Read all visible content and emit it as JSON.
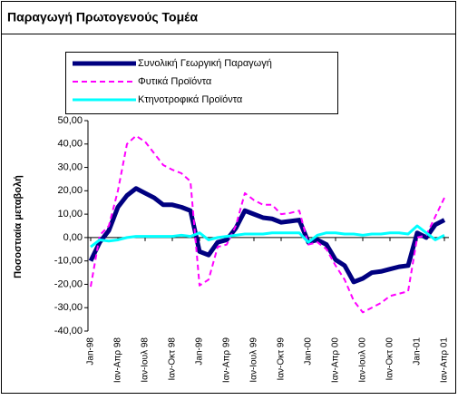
{
  "chart_data": {
    "type": "line",
    "title": "Παραγωγή Πρωτογενούς Τομέα",
    "y_label": "Ποσοστιαία μεταβολή",
    "categories": [
      "Jan-98",
      null,
      null,
      "Ιαν-Απρ 98",
      null,
      null,
      "Ιαν-Ιουλ 98",
      null,
      null,
      "Ιαν-Οκτ 98",
      null,
      null,
      "Jan-99",
      null,
      null,
      "Ιαν-Απρ 99",
      null,
      null,
      "Ιαν-Ιουλ 99",
      null,
      null,
      "Ιαν-Οκτ 99",
      null,
      null,
      "Jan-00",
      null,
      null,
      "Ιαν-Απρ 00",
      null,
      null,
      "Ιαν-Ιουλ 00",
      null,
      null,
      "Ιαν-Οκτ 00",
      null,
      null,
      "Jan-01",
      null,
      null,
      "Ιαν-Απρ 01"
    ],
    "series": [
      {
        "name": "Συνολική Γεωργική Παραγωγή",
        "color": "#000080",
        "values": [
          -10,
          -2,
          3,
          13,
          18,
          21,
          19,
          17,
          14,
          14,
          13,
          11.5,
          -6,
          -7.5,
          -2,
          -1,
          4,
          11.5,
          10,
          8.5,
          8,
          6.5,
          7,
          7.5,
          -2,
          -1,
          -3,
          -9.5,
          -12,
          -19,
          -17.5,
          -15,
          -14.5,
          -13.5,
          -12.5,
          -12,
          2,
          0,
          5.5,
          7.5
        ]
      },
      {
        "name": "Φυτικά Προϊόντα",
        "color": "#ff00ff",
        "values": [
          -21,
          1,
          5,
          20,
          40,
          43.5,
          41,
          36,
          31,
          29,
          27.5,
          24,
          -20.5,
          -18,
          -4,
          -3,
          5,
          19,
          16,
          14,
          14,
          10,
          10.5,
          11.5,
          -3,
          -2,
          -5,
          -12,
          -18,
          -27,
          -32,
          -30,
          -28,
          -25,
          -24,
          -23,
          0,
          1,
          9,
          17
        ]
      },
      {
        "name": "Κτηνοτροφικά Προϊόντα",
        "color": "#00ffff",
        "values": [
          -4,
          -1,
          -1.5,
          -1,
          0,
          0.5,
          0.5,
          0.5,
          0.5,
          0.5,
          1,
          0.5,
          2,
          -1,
          0,
          0.5,
          1,
          1.5,
          1.5,
          1.5,
          2,
          2,
          2,
          2,
          -2,
          1,
          2,
          2,
          1.5,
          1.5,
          1,
          1.5,
          1.5,
          2,
          2,
          1.5,
          5,
          2,
          -1,
          1
        ]
      }
    ],
    "ylim": [
      -40,
      50
    ],
    "yticks": [
      {
        "value": -40,
        "label": "-40,00"
      },
      {
        "value": -30,
        "label": "-30,00"
      },
      {
        "value": -20,
        "label": "-20,00"
      },
      {
        "value": -10,
        "label": "-10,00"
      },
      {
        "value": 0,
        "label": "0,00"
      },
      {
        "value": 10,
        "label": "10,00"
      },
      {
        "value": 20,
        "label": "20,00"
      },
      {
        "value": 30,
        "label": "30,00"
      },
      {
        "value": 40,
        "label": "40,00"
      },
      {
        "value": 50,
        "label": "50,00"
      }
    ],
    "legend": "top"
  }
}
